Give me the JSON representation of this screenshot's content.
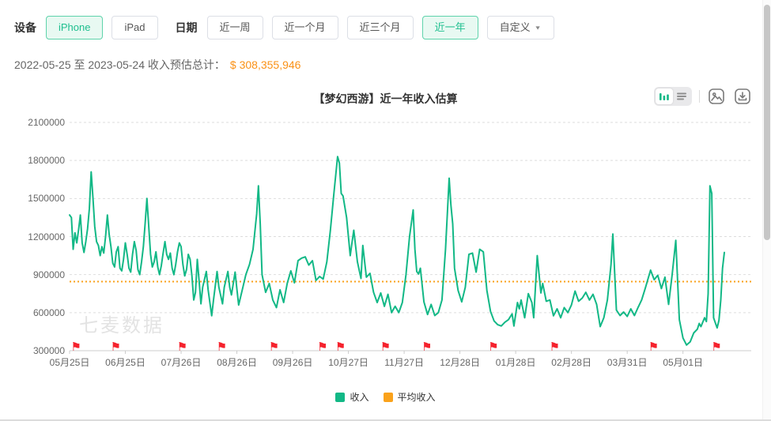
{
  "filters": {
    "device_label": "设备",
    "device_options": [
      {
        "label": "iPhone",
        "selected": true
      },
      {
        "label": "iPad",
        "selected": false
      }
    ],
    "date_label": "日期",
    "date_options": [
      {
        "label": "近一周",
        "selected": false
      },
      {
        "label": "近一个月",
        "selected": false
      },
      {
        "label": "近三个月",
        "selected": false
      },
      {
        "label": "近一年",
        "selected": true
      },
      {
        "label": "自定义",
        "selected": false,
        "caret": true
      }
    ]
  },
  "summary": {
    "range_text": "2022-05-25 至 2023-05-24 收入预估总计：",
    "amount": "$ 308,355,946"
  },
  "chart_header": {
    "title": "【梦幻西游】近一年收入估算"
  },
  "toolbar": {
    "icons": [
      {
        "name": "bar-chart-toggle",
        "selected": true
      },
      {
        "name": "list-toggle",
        "selected": false
      },
      {
        "name": "export-image",
        "selected": false
      },
      {
        "name": "download",
        "selected": false
      }
    ]
  },
  "watermark": "七麦数据",
  "legend": [
    {
      "label": "收入",
      "color": "#12b886"
    },
    {
      "label": "平均收入",
      "color": "#faa21b"
    }
  ],
  "colors": {
    "line_green": "#12b886",
    "avg_orange": "#faa21b",
    "amount_orange": "#fa9116",
    "flag_red": "#f5222d",
    "grid": "#dddddd",
    "axis": "#cccccc"
  },
  "chart_data": {
    "type": "line",
    "title": "【梦幻西游】近一年收入估算",
    "ylabel": "",
    "xlabel": "",
    "ylim": [
      300000,
      2100000
    ],
    "y_ticks": [
      300000,
      600000,
      900000,
      1200000,
      1500000,
      1800000,
      2100000
    ],
    "days_total": 365,
    "x_tick_days": [
      0,
      31,
      62,
      93,
      124,
      155,
      186,
      217,
      248,
      279,
      310,
      341
    ],
    "x_tick_labels": [
      "05月25日",
      "06月25日",
      "07月26日",
      "08月26日",
      "09月26日",
      "10月27日",
      "11月27日",
      "12月28日",
      "01月28日",
      "02月28日",
      "03月31日",
      "05月01日"
    ],
    "grid": "dashed-horizontal",
    "legend_position": "bottom",
    "series": [
      {
        "name": "收入",
        "color": "#12b886",
        "type": "line",
        "points_note": "[day_index_from_2022-05-25, estimated_revenue_usd]",
        "points": [
          [
            0,
            1370000
          ],
          [
            1,
            1350000
          ],
          [
            2,
            1100000
          ],
          [
            3,
            1230000
          ],
          [
            4,
            1150000
          ],
          [
            5,
            1255000
          ],
          [
            6,
            1370000
          ],
          [
            7,
            1150000
          ],
          [
            8,
            1075000
          ],
          [
            9,
            1160000
          ],
          [
            10,
            1260000
          ],
          [
            11,
            1420000
          ],
          [
            12,
            1710000
          ],
          [
            13,
            1500000
          ],
          [
            14,
            1280000
          ],
          [
            15,
            1160000
          ],
          [
            16,
            1130000
          ],
          [
            17,
            1050000
          ],
          [
            18,
            1120000
          ],
          [
            19,
            1070000
          ],
          [
            20,
            1200000
          ],
          [
            21,
            1370000
          ],
          [
            22,
            1220000
          ],
          [
            23,
            1120000
          ],
          [
            24,
            990000
          ],
          [
            25,
            960000
          ],
          [
            26,
            1080000
          ],
          [
            27,
            1120000
          ],
          [
            28,
            950000
          ],
          [
            29,
            930000
          ],
          [
            30,
            1020000
          ],
          [
            31,
            1150000
          ],
          [
            32,
            1060000
          ],
          [
            33,
            950000
          ],
          [
            34,
            920000
          ],
          [
            35,
            1060000
          ],
          [
            36,
            1160000
          ],
          [
            37,
            1090000
          ],
          [
            38,
            940000
          ],
          [
            39,
            900000
          ],
          [
            40,
            1000000
          ],
          [
            41,
            1120000
          ],
          [
            42,
            1300000
          ],
          [
            43,
            1500000
          ],
          [
            44,
            1280000
          ],
          [
            45,
            1060000
          ],
          [
            46,
            960000
          ],
          [
            47,
            1000000
          ],
          [
            48,
            1080000
          ],
          [
            49,
            960000
          ],
          [
            50,
            900000
          ],
          [
            51,
            970000
          ],
          [
            52,
            1070000
          ],
          [
            53,
            1160000
          ],
          [
            54,
            1060000
          ],
          [
            55,
            1020000
          ],
          [
            56,
            1070000
          ],
          [
            57,
            950000
          ],
          [
            58,
            900000
          ],
          [
            59,
            980000
          ],
          [
            60,
            1080000
          ],
          [
            61,
            1150000
          ],
          [
            62,
            1120000
          ],
          [
            63,
            980000
          ],
          [
            64,
            890000
          ],
          [
            65,
            940000
          ],
          [
            66,
            1060000
          ],
          [
            67,
            1020000
          ],
          [
            68,
            890000
          ],
          [
            69,
            700000
          ],
          [
            70,
            760000
          ],
          [
            71,
            1020000
          ],
          [
            72,
            850000
          ],
          [
            73,
            670000
          ],
          [
            74,
            800000
          ],
          [
            76,
            925000
          ],
          [
            77,
            780000
          ],
          [
            79,
            575000
          ],
          [
            80,
            700000
          ],
          [
            82,
            925000
          ],
          [
            83,
            800000
          ],
          [
            85,
            670000
          ],
          [
            86,
            800000
          ],
          [
            88,
            925000
          ],
          [
            89,
            800000
          ],
          [
            90,
            740000
          ],
          [
            92,
            920000
          ],
          [
            93,
            790000
          ],
          [
            94,
            660000
          ],
          [
            96,
            780000
          ],
          [
            98,
            900000
          ],
          [
            100,
            980000
          ],
          [
            102,
            1100000
          ],
          [
            104,
            1380000
          ],
          [
            105,
            1600000
          ],
          [
            106,
            1300000
          ],
          [
            107,
            900000
          ],
          [
            109,
            760000
          ],
          [
            111,
            830000
          ],
          [
            113,
            700000
          ],
          [
            115,
            640000
          ],
          [
            117,
            780000
          ],
          [
            119,
            680000
          ],
          [
            121,
            830000
          ],
          [
            123,
            930000
          ],
          [
            125,
            835000
          ],
          [
            127,
            1010000
          ],
          [
            129,
            1030000
          ],
          [
            131,
            1040000
          ],
          [
            133,
            975000
          ],
          [
            135,
            1010000
          ],
          [
            137,
            855000
          ],
          [
            139,
            885000
          ],
          [
            141,
            865000
          ],
          [
            143,
            1000000
          ],
          [
            145,
            1250000
          ],
          [
            147,
            1550000
          ],
          [
            149,
            1830000
          ],
          [
            150,
            1780000
          ],
          [
            151,
            1540000
          ],
          [
            152,
            1520000
          ],
          [
            154,
            1350000
          ],
          [
            155,
            1200000
          ],
          [
            156,
            1050000
          ],
          [
            157,
            1150000
          ],
          [
            158,
            1250000
          ],
          [
            160,
            1000000
          ],
          [
            162,
            870000
          ],
          [
            163,
            1130000
          ],
          [
            165,
            880000
          ],
          [
            167,
            910000
          ],
          [
            169,
            760000
          ],
          [
            171,
            680000
          ],
          [
            173,
            755000
          ],
          [
            175,
            650000
          ],
          [
            177,
            745000
          ],
          [
            179,
            600000
          ],
          [
            181,
            650000
          ],
          [
            183,
            600000
          ],
          [
            185,
            680000
          ],
          [
            187,
            900000
          ],
          [
            189,
            1200000
          ],
          [
            191,
            1410000
          ],
          [
            192,
            1100000
          ],
          [
            193,
            925000
          ],
          [
            194,
            905000
          ],
          [
            195,
            950000
          ],
          [
            197,
            685000
          ],
          [
            199,
            585000
          ],
          [
            201,
            665000
          ],
          [
            203,
            577000
          ],
          [
            205,
            600000
          ],
          [
            207,
            700000
          ],
          [
            209,
            1100000
          ],
          [
            211,
            1660000
          ],
          [
            212,
            1450000
          ],
          [
            213,
            1300000
          ],
          [
            214,
            950000
          ],
          [
            216,
            775000
          ],
          [
            218,
            685000
          ],
          [
            220,
            800000
          ],
          [
            222,
            1060000
          ],
          [
            224,
            1070000
          ],
          [
            226,
            920000
          ],
          [
            228,
            1100000
          ],
          [
            230,
            1080000
          ],
          [
            232,
            775000
          ],
          [
            234,
            610000
          ],
          [
            236,
            535000
          ],
          [
            238,
            505000
          ],
          [
            240,
            495000
          ],
          [
            242,
            525000
          ],
          [
            244,
            545000
          ],
          [
            246,
            590000
          ],
          [
            247,
            495000
          ],
          [
            249,
            680000
          ],
          [
            250,
            630000
          ],
          [
            251,
            700000
          ],
          [
            253,
            560000
          ],
          [
            255,
            750000
          ],
          [
            257,
            680000
          ],
          [
            258,
            560000
          ],
          [
            260,
            1050000
          ],
          [
            262,
            755000
          ],
          [
            263,
            830000
          ],
          [
            265,
            690000
          ],
          [
            267,
            700000
          ],
          [
            269,
            575000
          ],
          [
            271,
            630000
          ],
          [
            273,
            560000
          ],
          [
            275,
            640000
          ],
          [
            277,
            600000
          ],
          [
            279,
            660000
          ],
          [
            281,
            770000
          ],
          [
            283,
            690000
          ],
          [
            285,
            715000
          ],
          [
            287,
            760000
          ],
          [
            289,
            700000
          ],
          [
            291,
            745000
          ],
          [
            293,
            665000
          ],
          [
            295,
            490000
          ],
          [
            297,
            560000
          ],
          [
            299,
            700000
          ],
          [
            301,
            980000
          ],
          [
            302,
            1220000
          ],
          [
            304,
            620000
          ],
          [
            306,
            577000
          ],
          [
            308,
            605000
          ],
          [
            310,
            570000
          ],
          [
            312,
            630000
          ],
          [
            314,
            577000
          ],
          [
            316,
            640000
          ],
          [
            318,
            700000
          ],
          [
            320,
            790000
          ],
          [
            323,
            935000
          ],
          [
            325,
            860000
          ],
          [
            327,
            895000
          ],
          [
            329,
            790000
          ],
          [
            331,
            880000
          ],
          [
            333,
            665000
          ],
          [
            335,
            900000
          ],
          [
            337,
            1170000
          ],
          [
            339,
            545000
          ],
          [
            341,
            400000
          ],
          [
            343,
            345000
          ],
          [
            345,
            370000
          ],
          [
            347,
            440000
          ],
          [
            349,
            470000
          ],
          [
            350,
            515000
          ],
          [
            351,
            490000
          ],
          [
            353,
            560000
          ],
          [
            354,
            530000
          ],
          [
            355,
            750000
          ],
          [
            356,
            1600000
          ],
          [
            357,
            1540000
          ],
          [
            358,
            560000
          ],
          [
            359,
            520000
          ],
          [
            360,
            480000
          ],
          [
            361,
            540000
          ],
          [
            362,
            700000
          ],
          [
            363,
            950000
          ],
          [
            364,
            1075000
          ]
        ]
      },
      {
        "name": "平均收入",
        "color": "#faa21b",
        "type": "horizontal-dotted-line",
        "value": 844811
      }
    ],
    "flag_marker_days": [
      2,
      24,
      61,
      83,
      112,
      139,
      149,
      174,
      197,
      234,
      268,
      323,
      358
    ]
  }
}
